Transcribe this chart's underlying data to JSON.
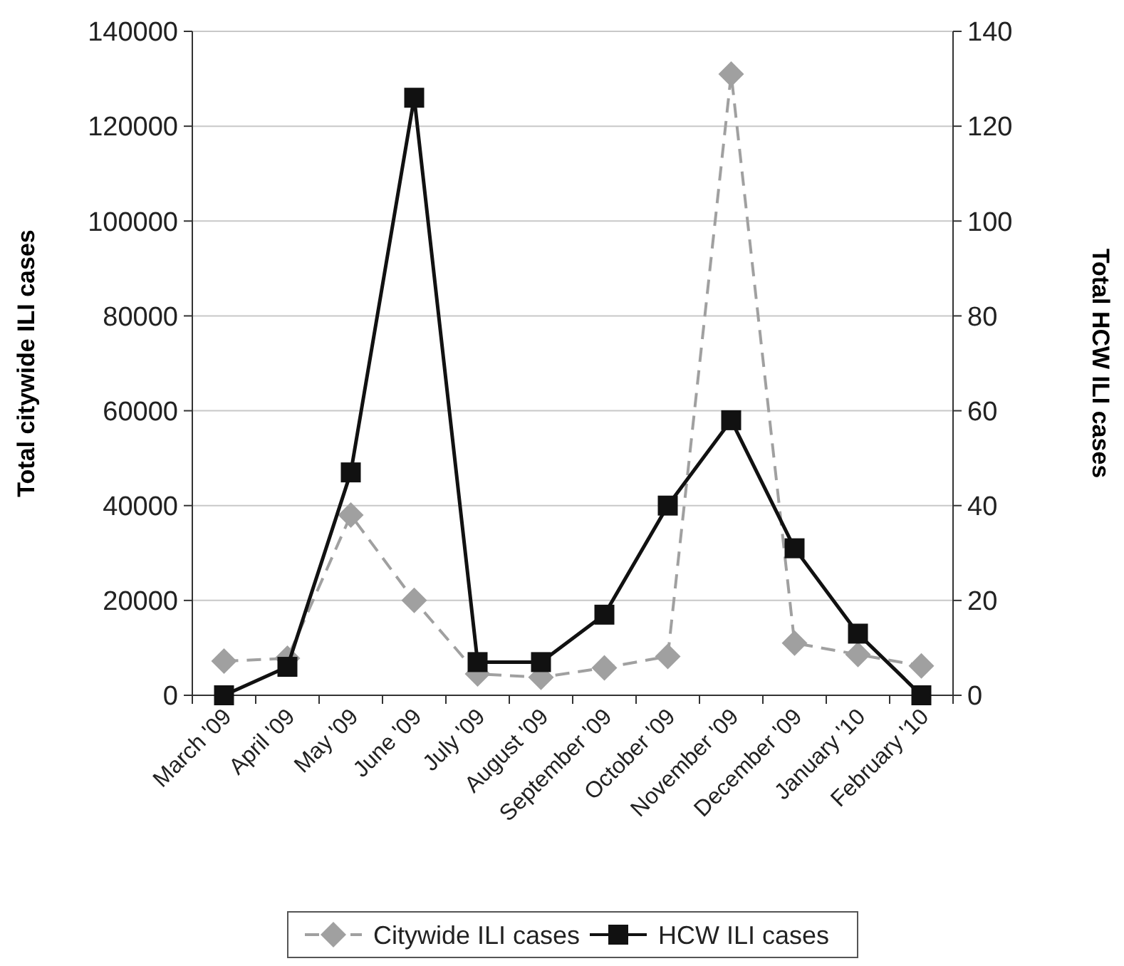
{
  "chart_data": {
    "type": "line",
    "ylabel": "Total citywide ILI cases",
    "y2label": "Total HCW ILI cases",
    "categories": [
      "March '09",
      "April '09",
      "May '09",
      "June '09",
      "July '09",
      "August '09",
      "September '09",
      "October '09",
      "November '09",
      "December '09",
      "January '10",
      "February '10"
    ],
    "series": [
      {
        "name": "Citywide ILI cases",
        "color": "#a0a0a0",
        "marker": "diamond",
        "line_style": "dashed",
        "values": [
          7200,
          7800,
          38000,
          20000,
          4500,
          3800,
          5800,
          8200,
          131000,
          11000,
          8600,
          6200
        ]
      },
      {
        "name": "HCW ILI cases",
        "color": "#111111",
        "marker": "square",
        "line_style": "solid",
        "axis": "y2",
        "values": [
          0,
          6,
          47,
          126,
          7,
          7,
          17,
          40,
          58,
          31,
          13,
          0
        ]
      }
    ],
    "ylim": [
      0,
      140000
    ],
    "yticks": [
      0,
      20000,
      40000,
      60000,
      80000,
      100000,
      120000,
      140000
    ],
    "y2lim": [
      0,
      140
    ],
    "y2ticks": [
      0,
      20,
      40,
      60,
      80,
      100,
      120,
      140
    ],
    "grid": "y",
    "legend": "bottom"
  }
}
